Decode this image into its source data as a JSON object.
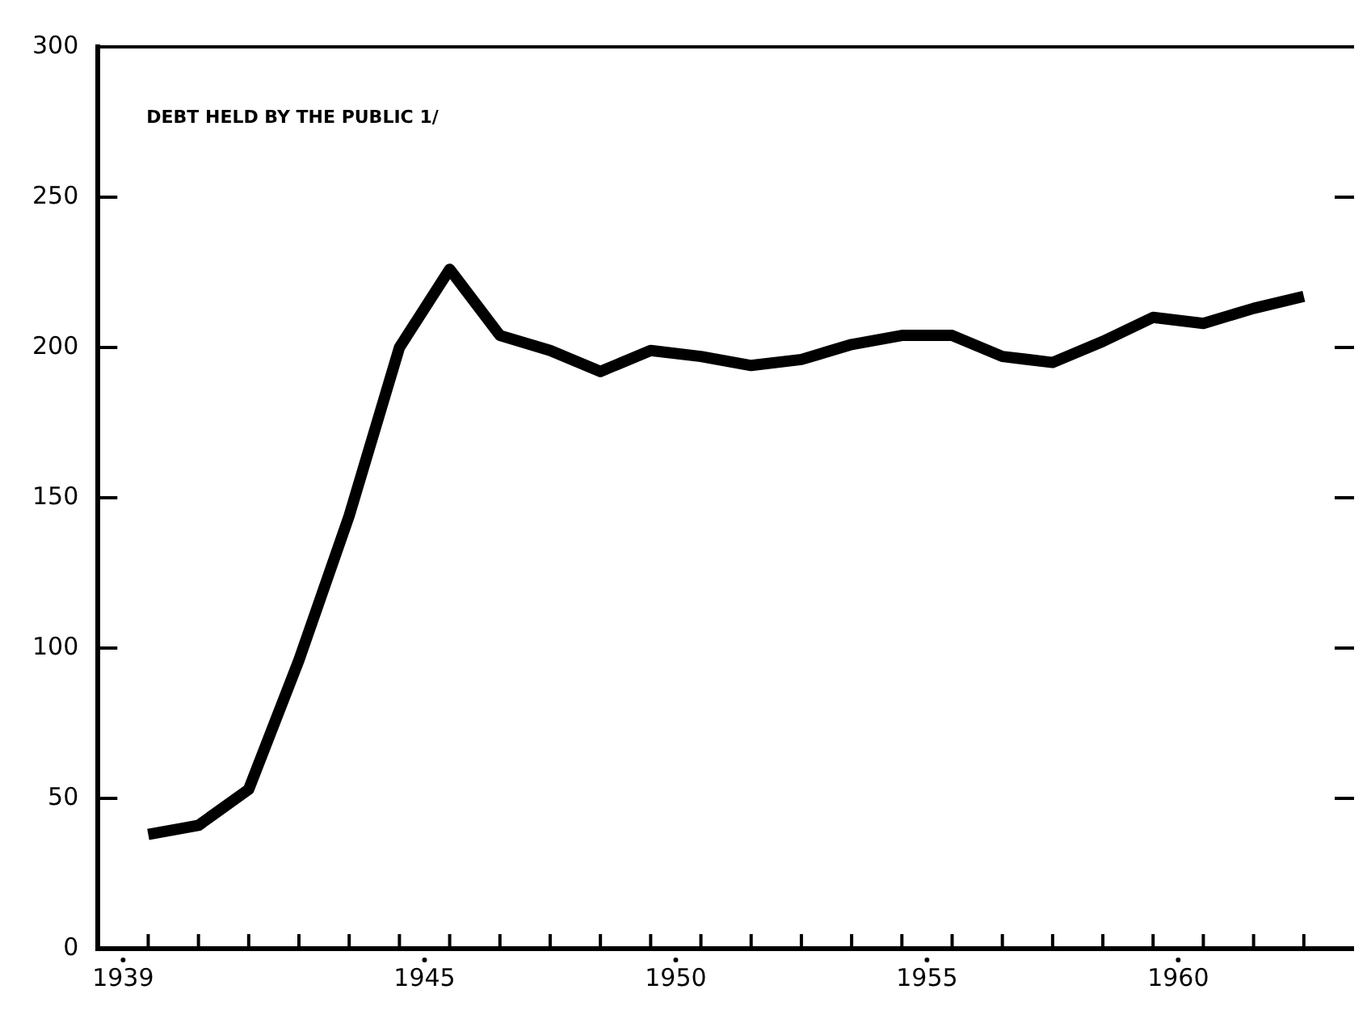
{
  "chart_data": {
    "type": "line",
    "annotations": [
      "DEBT HELD BY THE PUBLIC 1/"
    ],
    "x": [
      1939.5,
      1940.5,
      1941.5,
      1942.5,
      1943.5,
      1944.5,
      1945.5,
      1946.5,
      1947.5,
      1948.5,
      1949.5,
      1950.5,
      1951.5,
      1952.5,
      1953.5,
      1954.5,
      1955.5,
      1956.5,
      1957.5,
      1958.5,
      1959.5,
      1960.5,
      1961.5,
      1962.5
    ],
    "series": [
      {
        "color": "#000000",
        "values": [
          38,
          41,
          53,
          96,
          144,
          200,
          226,
          204,
          199,
          192,
          199,
          197,
          194,
          196,
          201,
          204,
          204,
          197,
          195,
          202,
          210,
          208,
          213,
          217
        ]
      }
    ],
    "xlim": [
      1938.5,
      1963.5
    ],
    "xticks": [
      1939,
      {
        "value": 1939.5,
        "label": null
      },
      {
        "value": 1940.5,
        "label": null
      },
      {
        "value": 1941.5,
        "label": null
      },
      {
        "value": 1942.5,
        "label": null
      },
      {
        "value": 1943.5,
        "label": null
      },
      {
        "value": 1944.5,
        "label": null
      },
      1945,
      {
        "value": 1945.5,
        "label": null
      },
      {
        "value": 1946.5,
        "label": null
      },
      {
        "value": 1947.5,
        "label": null
      },
      {
        "value": 1948.5,
        "label": null
      },
      {
        "value": 1949.5,
        "label": null
      },
      1950,
      {
        "value": 1950.5,
        "label": null
      },
      {
        "value": 1951.5,
        "label": null
      },
      {
        "value": 1952.5,
        "label": null
      },
      {
        "value": 1953.5,
        "label": null
      },
      {
        "value": 1954.5,
        "label": null
      },
      1955,
      {
        "value": 1955.5,
        "label": null
      },
      {
        "value": 1956.5,
        "label": null
      },
      {
        "value": 1957.5,
        "label": null
      },
      {
        "value": 1958.5,
        "label": null
      },
      {
        "value": 1959.5,
        "label": null
      },
      1960,
      {
        "value": 1960.5,
        "label": null
      },
      {
        "value": 1961.5,
        "label": null
      },
      {
        "value": 1962.5,
        "label": null
      }
    ],
    "ylim": [
      0,
      300
    ],
    "yticks": [
      0,
      50,
      100,
      150,
      200,
      250,
      300
    ],
    "grid": false,
    "legend": false,
    "marker": "none",
    "line_style": "solid"
  }
}
